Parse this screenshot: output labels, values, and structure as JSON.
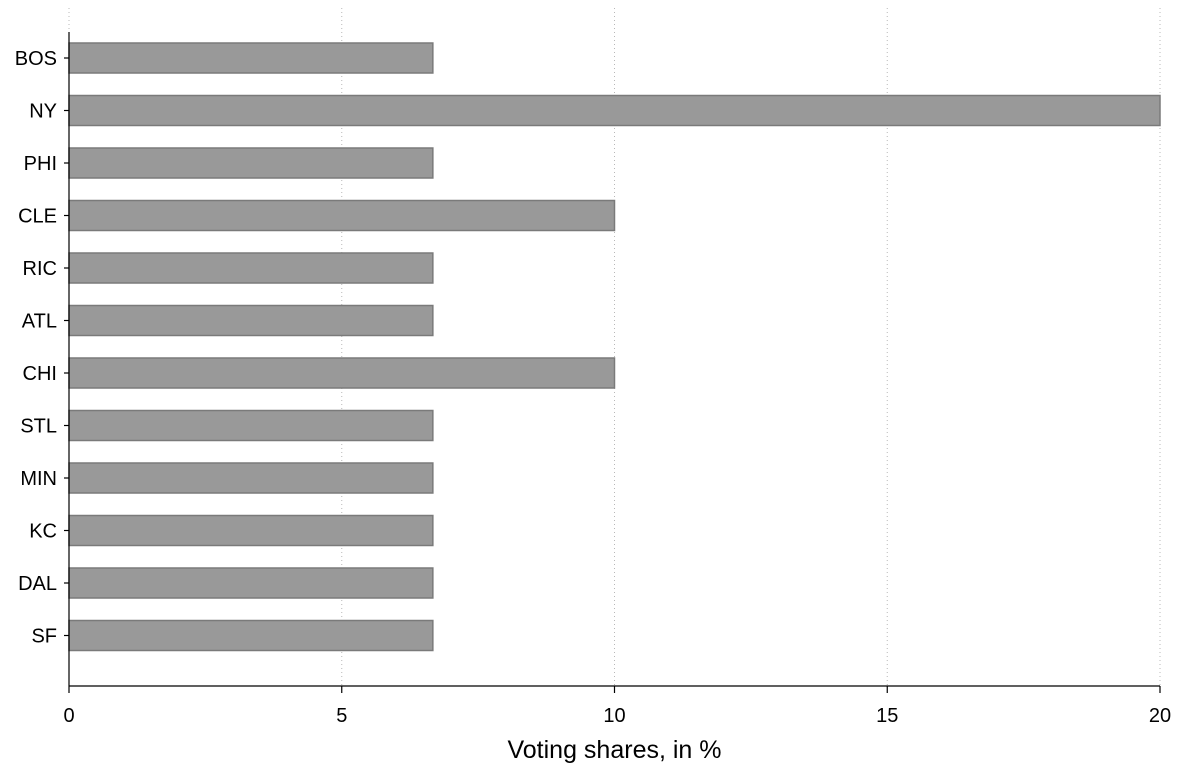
{
  "chart_data": {
    "type": "bar",
    "orientation": "horizontal",
    "categories": [
      "BOS",
      "NY",
      "PHI",
      "CLE",
      "RIC",
      "ATL",
      "CHI",
      "STL",
      "MIN",
      "KC",
      "DAL",
      "SF"
    ],
    "values": [
      6.67,
      20,
      6.67,
      10,
      6.67,
      6.67,
      10,
      6.67,
      6.67,
      6.67,
      6.67,
      6.67
    ],
    "title": "",
    "xlabel": "Voting shares, in %",
    "ylabel": "",
    "xlim": [
      0,
      20
    ],
    "xticks": [
      0,
      5,
      10,
      15,
      20
    ],
    "xtick_labels": [
      "0",
      "5",
      "10",
      "15",
      "20"
    ],
    "grid": "vertical dotted",
    "bar_color": "#999999",
    "bar_edge_color": "#7a7a7a"
  }
}
